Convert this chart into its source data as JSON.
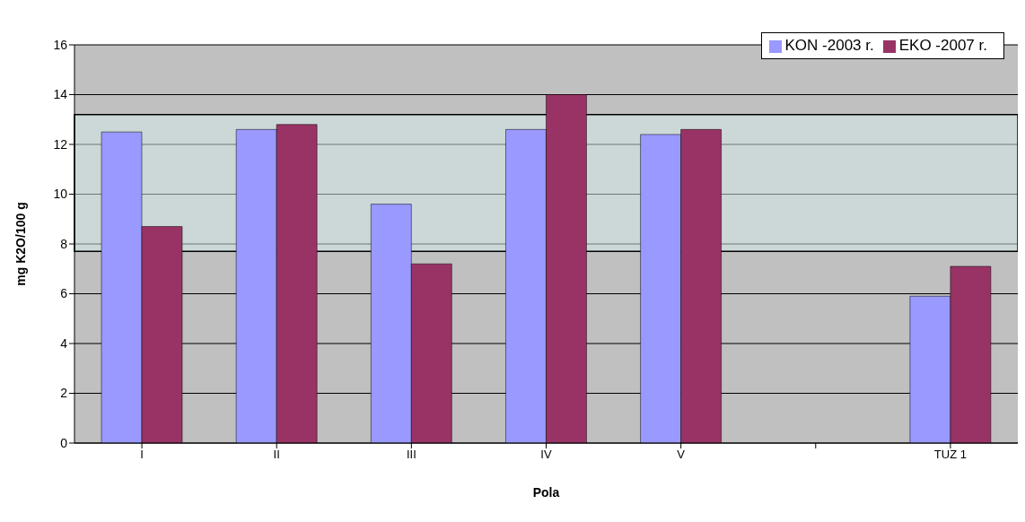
{
  "chart_data": {
    "type": "bar",
    "xlabel": "Pola",
    "ylabel": "mg K2O/100 g",
    "categories": [
      "I",
      "II",
      "III",
      "IV",
      "V",
      null,
      "TUZ 1"
    ],
    "series": [
      {
        "name": "KON -2003 r.",
        "color": "#9999ff",
        "values": [
          12.5,
          12.6,
          9.6,
          12.6,
          12.4,
          null,
          5.9
        ]
      },
      {
        "name": "EKO -2007 r.",
        "color": "#993366",
        "values": [
          8.7,
          12.8,
          7.2,
          14.0,
          12.6,
          null,
          7.1
        ]
      }
    ],
    "ylim": [
      0,
      16
    ],
    "yticks": [
      0,
      2,
      4,
      6,
      8,
      10,
      12,
      14,
      16
    ],
    "grid": "y",
    "legend": "top right",
    "bands": [
      {
        "axis": "y",
        "from": 7.7,
        "to": 13.2,
        "color": "#d8f0f0"
      }
    ]
  }
}
